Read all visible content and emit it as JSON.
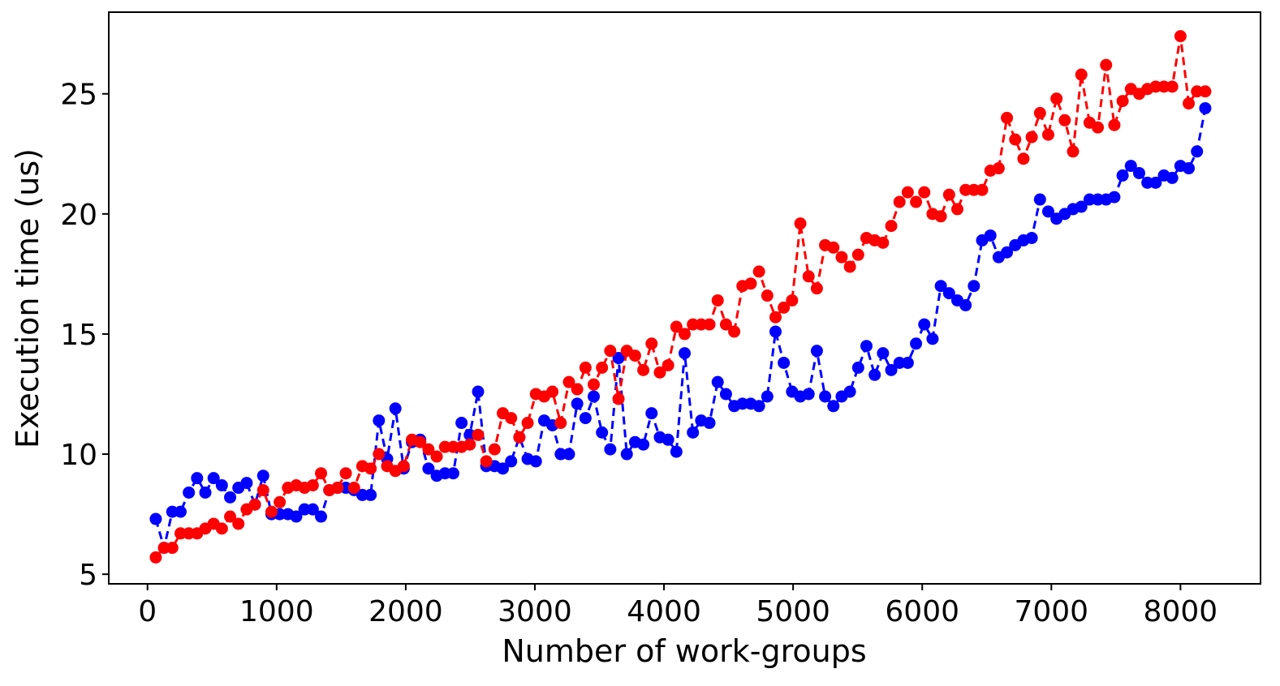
{
  "chart_data": {
    "type": "line",
    "title": "",
    "xlabel": "Number of work-groups",
    "ylabel": "Execution time (us)",
    "xlim": [
      -300,
      8620
    ],
    "ylim": [
      4.6,
      28.4
    ],
    "xticks": [
      0,
      1000,
      2000,
      3000,
      4000,
      5000,
      6000,
      7000,
      8000
    ],
    "yticks": [
      5,
      10,
      15,
      20,
      25
    ],
    "grid": false,
    "legend": "none",
    "line_style": "dashed",
    "marker": "circle",
    "x": [
      64,
      128,
      192,
      256,
      320,
      384,
      448,
      512,
      576,
      640,
      704,
      768,
      832,
      896,
      960,
      1024,
      1088,
      1152,
      1216,
      1280,
      1344,
      1408,
      1472,
      1536,
      1600,
      1664,
      1728,
      1792,
      1856,
      1920,
      1984,
      2048,
      2112,
      2176,
      2240,
      2304,
      2368,
      2432,
      2496,
      2560,
      2624,
      2688,
      2752,
      2816,
      2880,
      2944,
      3008,
      3072,
      3136,
      3200,
      3264,
      3328,
      3392,
      3456,
      3520,
      3584,
      3648,
      3712,
      3776,
      3840,
      3904,
      3968,
      4032,
      4096,
      4160,
      4224,
      4288,
      4352,
      4416,
      4480,
      4544,
      4608,
      4672,
      4736,
      4800,
      4864,
      4928,
      4992,
      5056,
      5120,
      5184,
      5248,
      5312,
      5376,
      5440,
      5504,
      5568,
      5632,
      5696,
      5760,
      5824,
      5888,
      5952,
      6016,
      6080,
      6144,
      6208,
      6272,
      6336,
      6400,
      6464,
      6528,
      6592,
      6656,
      6720,
      6784,
      6848,
      6912,
      6976,
      7040,
      7104,
      7168,
      7232,
      7296,
      7360,
      7424,
      7488,
      7552,
      7616,
      7680,
      7744,
      7808,
      7872,
      7936,
      8000,
      8064,
      8128,
      8192
    ],
    "series": [
      {
        "color": "#0000ff",
        "values": [
          7.3,
          6.1,
          7.6,
          7.6,
          8.4,
          9.0,
          8.4,
          9.0,
          8.7,
          8.2,
          8.6,
          8.8,
          7.9,
          9.1,
          7.5,
          7.5,
          7.5,
          7.4,
          7.7,
          7.7,
          7.4,
          8.5,
          8.6,
          8.6,
          8.5,
          8.3,
          8.3,
          11.4,
          9.8,
          11.9,
          9.4,
          10.5,
          10.6,
          9.4,
          9.1,
          9.2,
          9.2,
          11.3,
          10.8,
          12.6,
          9.5,
          9.5,
          9.4,
          9.7,
          10.7,
          9.8,
          9.7,
          11.4,
          11.2,
          10.0,
          10.0,
          12.1,
          11.5,
          12.4,
          10.9,
          10.2,
          14.0,
          10.0,
          10.5,
          10.4,
          11.7,
          10.7,
          10.6,
          10.1,
          14.2,
          10.9,
          11.4,
          11.3,
          13.0,
          12.5,
          12.0,
          12.1,
          12.1,
          12.0,
          12.4,
          15.1,
          13.8,
          12.6,
          12.4,
          12.5,
          14.3,
          12.4,
          12.0,
          12.4,
          12.6,
          13.6,
          14.5,
          13.3,
          14.2,
          13.5,
          13.8,
          13.8,
          14.6,
          15.4,
          14.8,
          17.0,
          16.7,
          16.4,
          16.2,
          17.0,
          18.9,
          19.1,
          18.2,
          18.4,
          18.7,
          18.9,
          19.0,
          20.6,
          20.1,
          19.8,
          20.0,
          20.2,
          20.3,
          20.6,
          20.6,
          20.6,
          20.7,
          21.6,
          22.0,
          21.7,
          21.3,
          21.3,
          21.6,
          21.5,
          22.0,
          21.9,
          22.6,
          24.4
        ]
      },
      {
        "color": "#ff0000",
        "values": [
          5.7,
          6.1,
          6.1,
          6.7,
          6.7,
          6.7,
          6.9,
          7.1,
          6.9,
          7.4,
          7.1,
          7.7,
          7.9,
          8.5,
          7.6,
          8.0,
          8.6,
          8.7,
          8.6,
          8.7,
          9.2,
          8.5,
          8.6,
          9.2,
          8.6,
          9.5,
          9.4,
          10.0,
          9.5,
          9.3,
          9.5,
          10.6,
          10.5,
          10.2,
          9.9,
          10.3,
          10.3,
          10.3,
          10.4,
          10.8,
          9.7,
          10.2,
          11.7,
          11.5,
          10.7,
          11.3,
          12.5,
          12.4,
          12.6,
          11.3,
          13.0,
          12.7,
          13.6,
          12.9,
          13.6,
          14.3,
          12.3,
          14.3,
          14.1,
          13.5,
          14.6,
          13.4,
          13.7,
          15.3,
          15.0,
          15.4,
          15.4,
          15.4,
          16.4,
          15.4,
          15.1,
          17.0,
          17.1,
          17.6,
          16.6,
          15.7,
          16.1,
          16.4,
          19.6,
          17.4,
          16.9,
          18.7,
          18.6,
          18.2,
          17.8,
          18.3,
          19.0,
          18.9,
          18.8,
          19.5,
          20.5,
          20.9,
          20.5,
          20.9,
          20.0,
          19.9,
          20.8,
          20.2,
          21.0,
          21.0,
          21.0,
          21.8,
          21.9,
          24.0,
          23.1,
          22.3,
          23.2,
          24.2,
          23.3,
          24.8,
          23.9,
          22.6,
          25.8,
          23.8,
          23.6,
          26.2,
          23.7,
          24.7,
          25.2,
          25.0,
          25.2,
          25.3,
          25.3,
          25.3,
          27.4,
          24.6,
          25.1,
          25.1
        ]
      }
    ]
  }
}
